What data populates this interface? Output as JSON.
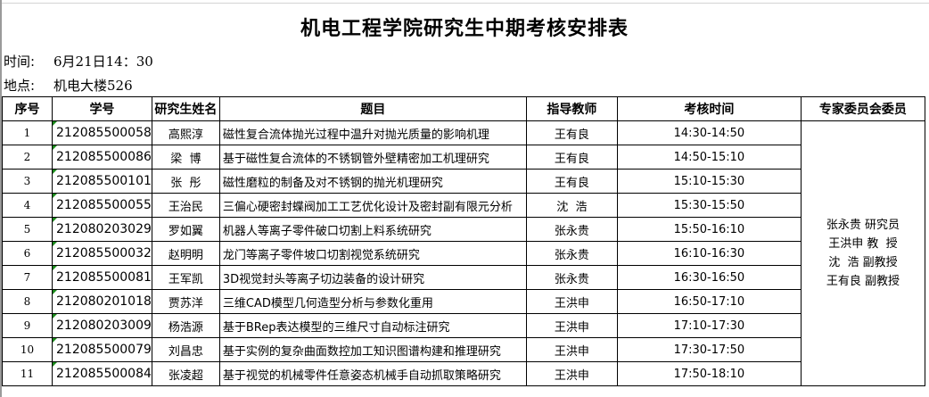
{
  "title": "机电工程学院研究生中期考核安排表",
  "time_label": "时间:",
  "time_value": "6月21日14：30",
  "place_label": "地点:",
  "place_value": "机电大楼526",
  "headers": [
    "序号",
    "学号",
    "研究生姓名",
    "题目",
    "指导教师",
    "考核时间",
    "专家委员会委员"
  ],
  "rows": [
    {
      "seq": "1",
      "id": "212085500058",
      "name": "高熙淳",
      "topic": "磁性复合流体抛光过程中温升对抛光质量的影响机理",
      "advisor": "王有良",
      "time": "14:30-14:50"
    },
    {
      "seq": "2",
      "id": "212085500086",
      "name": "梁  博",
      "topic": "基于磁性复合流体的不锈钢管外壁精密加工机理研究",
      "advisor": "王有良",
      "time": "14:50-15:10"
    },
    {
      "seq": "3",
      "id": "212085500101",
      "name": "张  彤",
      "topic": "磁性磨粒的制备及对不锈钢的抛光机理研究",
      "advisor": "王有良",
      "time": "15:10-15:30"
    },
    {
      "seq": "4",
      "id": "212085500055",
      "name": "王治民",
      "topic": "三偏心硬密封蝶阀加工工艺优化设计及密封副有限元分析",
      "advisor": "沈  浩",
      "time": "15:30-15:50"
    },
    {
      "seq": "5",
      "id": "212080203029",
      "name": "罗如翼",
      "topic": "机器人等离子零件破口切割上料系统研究",
      "advisor": "张永贵",
      "time": "15:50-16:10"
    },
    {
      "seq": "6",
      "id": "212085500032",
      "name": "赵明明",
      "topic": "龙门等离子零件坡口切割视觉系统研究",
      "advisor": "张永贵",
      "time": "16:10-16:30"
    },
    {
      "seq": "7",
      "id": "212085500081",
      "name": "王军凯",
      "topic": "3D视觉封头等离子切边装备的设计研究",
      "advisor": "张永贵",
      "time": "16:30-16:50"
    },
    {
      "seq": "8",
      "id": "212080201018",
      "name": "贾苏洋",
      "topic": "三维CAD模型几何造型分析与参数化重用",
      "advisor": "王洪申",
      "time": "16:50-17:10"
    },
    {
      "seq": "9",
      "id": "212080203009",
      "name": "杨浩源",
      "topic": "基于BRep表达模型的三维尺寸自动标注研究",
      "advisor": "王洪申",
      "time": "17:10-17:30"
    },
    {
      "seq": "10",
      "id": "212085500079",
      "name": "刘昌忠",
      "topic": "基于实例的复杂曲面数控加工知识图谱构建和推理研究",
      "advisor": "王洪申",
      "time": "17:30-17:50"
    },
    {
      "seq": "11",
      "id": "212085500084",
      "name": "张凌超",
      "topic": "基于视觉的机械零件任意姿态机械手自动抓取策略研究",
      "advisor": "王洪申",
      "time": "17:50-18:10"
    }
  ],
  "committee": [
    "张永贵 研究员",
    "王洪申 教  授",
    "沈  浩 副教授",
    "王有良 副教授"
  ]
}
